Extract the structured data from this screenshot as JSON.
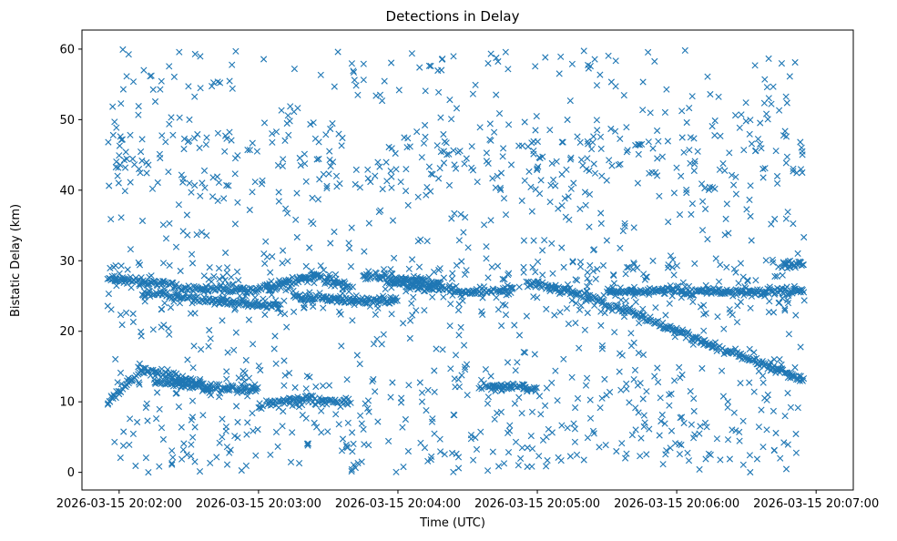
{
  "chart_data": {
    "type": "scatter",
    "title": "Detections in Delay",
    "xlabel": "Time (UTC)",
    "ylabel": "Bistatic Delay (km)",
    "marker": "x",
    "marker_color": "#1f77b4",
    "xlim": [
      "2026-03-15 20:01:44",
      "2026-03-15 20:07:16"
    ],
    "ylim": [
      -2.5,
      62.7
    ],
    "xticks": [
      "2026-03-15 20:02:00",
      "2026-03-15 20:03:00",
      "2026-03-15 20:04:00",
      "2026-03-15 20:05:00",
      "2026-03-15 20:06:00",
      "2026-03-15 20:07:00"
    ],
    "yticks": [
      0,
      10,
      20,
      30,
      40,
      50,
      60
    ],
    "data_range": {
      "t_start": "2026-03-15 20:01:55",
      "t_end": "2026-03-15 20:06:55"
    },
    "tracks": [
      {
        "points": [
          [
            "2026-03-15 20:01:55",
            27.6
          ],
          [
            "2026-03-15 20:02:15",
            26.8
          ],
          [
            "2026-03-15 20:02:35",
            26.0
          ],
          [
            "2026-03-15 20:03:00",
            26.0
          ],
          [
            "2026-03-15 20:03:25",
            27.8
          ],
          [
            "2026-03-15 20:03:40",
            26.3
          ]
        ]
      },
      {
        "points": [
          [
            "2026-03-15 20:02:10",
            25.5
          ],
          [
            "2026-03-15 20:02:40",
            24.3
          ],
          [
            "2026-03-15 20:03:10",
            23.6
          ]
        ]
      },
      {
        "points": [
          [
            "2026-03-15 20:03:15",
            24.8
          ],
          [
            "2026-03-15 20:03:45",
            24.4
          ],
          [
            "2026-03-15 20:04:00",
            24.2
          ]
        ]
      },
      {
        "points": [
          [
            "2026-03-15 20:03:45",
            28.0
          ],
          [
            "2026-03-15 20:04:10",
            27.0
          ],
          [
            "2026-03-15 20:04:20",
            26.5
          ]
        ]
      },
      {
        "points": [
          [
            "2026-03-15 20:03:55",
            26.8
          ],
          [
            "2026-03-15 20:04:30",
            25.6
          ],
          [
            "2026-03-15 20:04:50",
            25.8
          ]
        ]
      },
      {
        "points": [
          [
            "2026-03-15 20:04:55",
            27.0
          ],
          [
            "2026-03-15 20:05:20",
            25.2
          ],
          [
            "2026-03-15 20:05:45",
            22.0
          ],
          [
            "2026-03-15 20:06:15",
            18.0
          ],
          [
            "2026-03-15 20:06:40",
            15.0
          ],
          [
            "2026-03-15 20:06:55",
            13.0
          ]
        ]
      },
      {
        "points": [
          [
            "2026-03-15 20:05:30",
            25.5
          ],
          [
            "2026-03-15 20:06:00",
            25.8
          ],
          [
            "2026-03-15 20:06:30",
            25.6
          ],
          [
            "2026-03-15 20:06:55",
            25.8
          ]
        ]
      },
      {
        "points": [
          [
            "2026-03-15 20:06:45",
            29.5
          ],
          [
            "2026-03-15 20:06:55",
            29.6
          ]
        ]
      },
      {
        "points": [
          [
            "2026-03-15 20:01:55",
            10.0
          ],
          [
            "2026-03-15 20:02:10",
            14.5
          ],
          [
            "2026-03-15 20:02:20",
            14.0
          ],
          [
            "2026-03-15 20:02:40",
            12.0
          ],
          [
            "2026-03-15 20:03:00",
            11.8
          ]
        ]
      },
      {
        "points": [
          [
            "2026-03-15 20:02:15",
            13.0
          ],
          [
            "2026-03-15 20:02:30",
            12.5
          ],
          [
            "2026-03-15 20:02:40",
            11.5
          ]
        ]
      },
      {
        "points": [
          [
            "2026-03-15 20:04:35",
            12.2
          ],
          [
            "2026-03-15 20:05:00",
            12.0
          ]
        ]
      },
      {
        "points": [
          [
            "2026-03-15 20:03:00",
            9.5
          ],
          [
            "2026-03-15 20:03:20",
            10.5
          ],
          [
            "2026-03-15 20:03:40",
            10.0
          ]
        ]
      }
    ],
    "noise": {
      "count": 1450,
      "delay_range": [
        0.5,
        60.0
      ],
      "extra_density_bands": [
        [
          0,
          15
        ],
        [
          22,
          30
        ],
        [
          40,
          48
        ]
      ]
    },
    "grid": false,
    "legend": "none"
  }
}
